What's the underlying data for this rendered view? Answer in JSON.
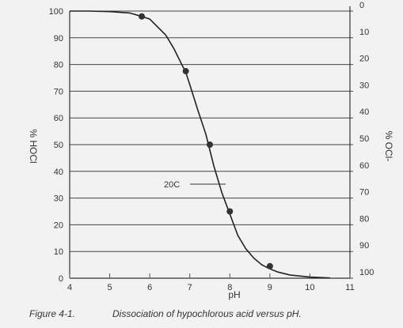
{
  "chart_data": {
    "type": "line",
    "caption_number": "Figure 4-1.",
    "caption_text": "Dissociation of hypochlorous acid versus pH.",
    "xlabel": "pH",
    "ylabel_left": "% HOCl",
    "ylabel_right": "% OCl-",
    "xlim": [
      4,
      11
    ],
    "ylim": [
      0,
      100
    ],
    "x_ticks": [
      "4",
      "5",
      "6",
      "7",
      "8",
      "9",
      "10",
      "11"
    ],
    "y_ticks_left": [
      "0",
      "10",
      "20",
      "30",
      "40",
      "50",
      "60",
      "70",
      "80",
      "90",
      "100"
    ],
    "y_ticks_right": [
      "100",
      "90",
      "80",
      "70",
      "60",
      "50",
      "40",
      "30",
      "20",
      "10",
      "0"
    ],
    "grid": "horizontal",
    "annotation": "20C",
    "series": [
      {
        "curve": [
          [
            4.0,
            100
          ],
          [
            4.5,
            100
          ],
          [
            5.0,
            99.8
          ],
          [
            5.5,
            99.3
          ],
          [
            5.8,
            98
          ],
          [
            6.0,
            97
          ],
          [
            6.2,
            94
          ],
          [
            6.4,
            91
          ],
          [
            6.6,
            86
          ],
          [
            6.8,
            80
          ],
          [
            6.9,
            77
          ],
          [
            7.0,
            72.5
          ],
          [
            7.2,
            63
          ],
          [
            7.4,
            54
          ],
          [
            7.6,
            42
          ],
          [
            7.8,
            32
          ],
          [
            8.0,
            24
          ],
          [
            8.2,
            16
          ],
          [
            8.4,
            11
          ],
          [
            8.6,
            7.5
          ],
          [
            8.8,
            5
          ],
          [
            9.0,
            3.5
          ],
          [
            9.2,
            2.3
          ],
          [
            9.5,
            1.2
          ],
          [
            10.0,
            0.4
          ],
          [
            10.5,
            0.1
          ]
        ],
        "markers": [
          [
            5.8,
            98
          ],
          [
            6.9,
            77.5
          ],
          [
            7.5,
            50
          ],
          [
            8.0,
            25
          ],
          [
            9.0,
            4.5
          ]
        ]
      }
    ]
  }
}
